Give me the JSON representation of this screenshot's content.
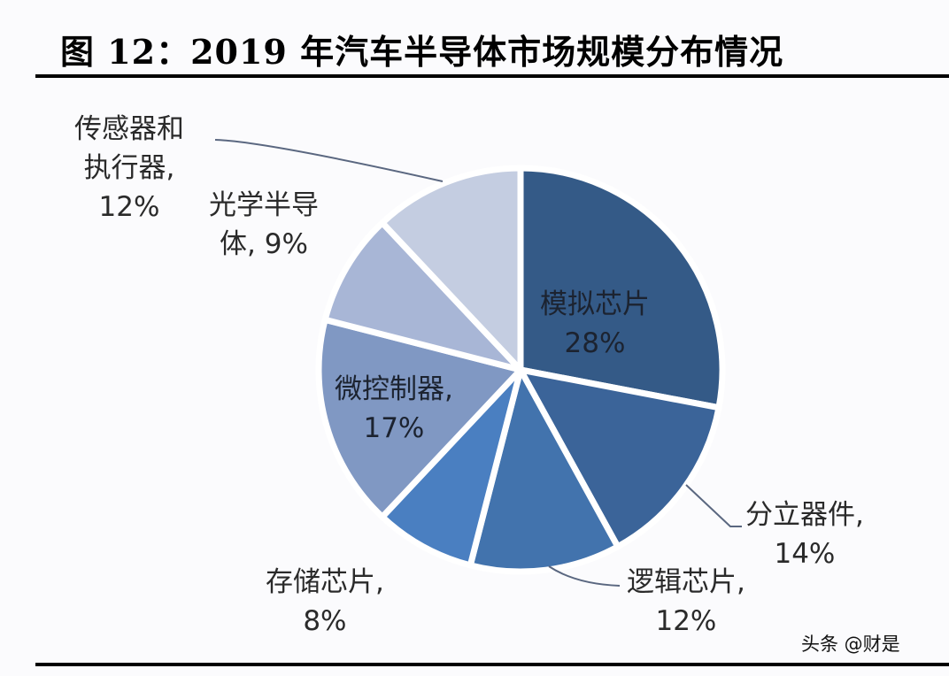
{
  "title": "图 12：2019 年汽车半导体市场规模分布情况",
  "watermark": "头条 @财是",
  "chart_data": {
    "type": "pie",
    "title": "图 12：2019 年汽车半导体市场规模分布情况",
    "categories": [
      "模拟芯片",
      "分立器件",
      "逻辑芯片",
      "存储芯片",
      "微控制器",
      "光学半导体",
      "传感器和执行器"
    ],
    "values": [
      28,
      14,
      12,
      8,
      17,
      9,
      12
    ],
    "unit": "%",
    "start_angle": "12 o'clock",
    "direction": "clockwise",
    "colors": [
      "#345a87",
      "#3b6499",
      "#4273ad",
      "#4a7fc1",
      "#8098c3",
      "#a8b6d6",
      "#c4cde1"
    ],
    "legend": "none (data labels with leader lines)"
  },
  "labels": {
    "analog": {
      "name": "模拟芯片",
      "value": "28%"
    },
    "discrete": {
      "name": "分立器件,",
      "value": "14%"
    },
    "logic": {
      "name": "逻辑芯片,",
      "value": "12%"
    },
    "memory": {
      "name": "存储芯片,",
      "value": "8%"
    },
    "mcu": {
      "name": "微控制器,",
      "value": "17%"
    },
    "optical": {
      "name_line1": "光学半导",
      "name_line2": "体, 9%"
    },
    "sensor": {
      "name_line1": "传感器和",
      "name_line2": "执行器,",
      "value": "12%"
    }
  }
}
